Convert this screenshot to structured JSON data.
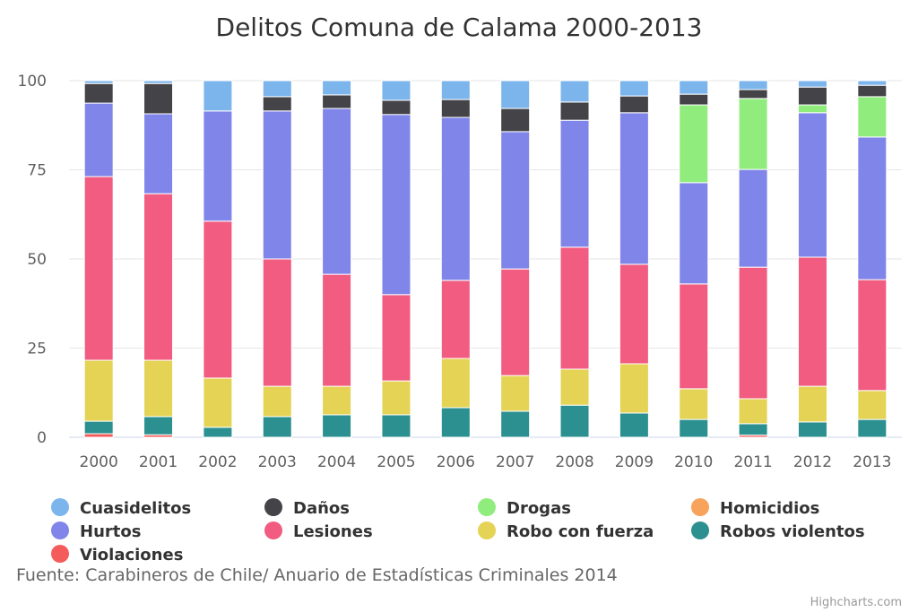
{
  "chart_data": {
    "type": "bar",
    "stacking": "percent",
    "title": "Delitos Comuna de Calama 2000-2013",
    "xlabel": "",
    "ylabel": "",
    "ylim": [
      0,
      100
    ],
    "yticks": [
      "0",
      "25",
      "50",
      "75",
      "100"
    ],
    "grid": true,
    "legend_position": "bottom",
    "categories": [
      "2000",
      "2001",
      "2002",
      "2003",
      "2004",
      "2005",
      "2006",
      "2007",
      "2008",
      "2009",
      "2010",
      "2011",
      "2012",
      "2013"
    ],
    "series": [
      {
        "name": "Cuasidelitos",
        "color": "#7cb5ec",
        "values": [
          0.8,
          0.8,
          8.5,
          4.5,
          4.0,
          5.5,
          5.3,
          7.8,
          6.0,
          4.3,
          3.8,
          2.5,
          1.8,
          1.3
        ]
      },
      {
        "name": "Daños",
        "color": "#434348",
        "values": [
          5.5,
          8.5,
          0,
          4.0,
          3.8,
          4.0,
          5.0,
          6.5,
          5.1,
          4.7,
          3.0,
          2.5,
          5.0,
          3.2
        ]
      },
      {
        "name": "Drogas",
        "color": "#90ed7d",
        "values": [
          0,
          0,
          0,
          0,
          0,
          0,
          0,
          0,
          0,
          0,
          21.8,
          19.9,
          2.2,
          11.3
        ]
      },
      {
        "name": "Homicidios",
        "color": "#f7a35c",
        "values": [
          0,
          0,
          0,
          0,
          0,
          0,
          0,
          0,
          0,
          0,
          0,
          0,
          0,
          0
        ]
      },
      {
        "name": "Hurtos",
        "color": "#8085e9",
        "values": [
          20.6,
          22.4,
          30.9,
          41.5,
          46.5,
          50.5,
          45.7,
          38.5,
          35.6,
          42.5,
          28.4,
          27.4,
          40.5,
          40.0
        ]
      },
      {
        "name": "Lesiones",
        "color": "#f15c80",
        "values": [
          51.5,
          46.7,
          44.0,
          35.7,
          31.4,
          24.2,
          21.9,
          29.9,
          34.2,
          27.9,
          29.4,
          36.9,
          36.2,
          31.1
        ]
      },
      {
        "name": "Robo con fuerza",
        "color": "#e4d354",
        "values": [
          17.1,
          15.8,
          13.8,
          8.5,
          8.0,
          9.5,
          13.8,
          10.0,
          10.1,
          13.8,
          8.6,
          7.0,
          10.0,
          8.1
        ]
      },
      {
        "name": "Robos violentos",
        "color": "#2b908f",
        "values": [
          3.5,
          5.1,
          2.8,
          5.8,
          6.3,
          6.3,
          8.3,
          7.3,
          9.0,
          6.8,
          5.0,
          3.2,
          4.3,
          5.0
        ]
      },
      {
        "name": "Violaciones",
        "color": "#f45b5b",
        "values": [
          1.0,
          0.7,
          0,
          0,
          0,
          0,
          0,
          0,
          0,
          0,
          0,
          0.6,
          0,
          0
        ]
      }
    ],
    "caption": "Fuente: Carabineros de Chile/ Anuario de Estadísticas Criminales 2014",
    "credits": "Highcharts.com"
  }
}
